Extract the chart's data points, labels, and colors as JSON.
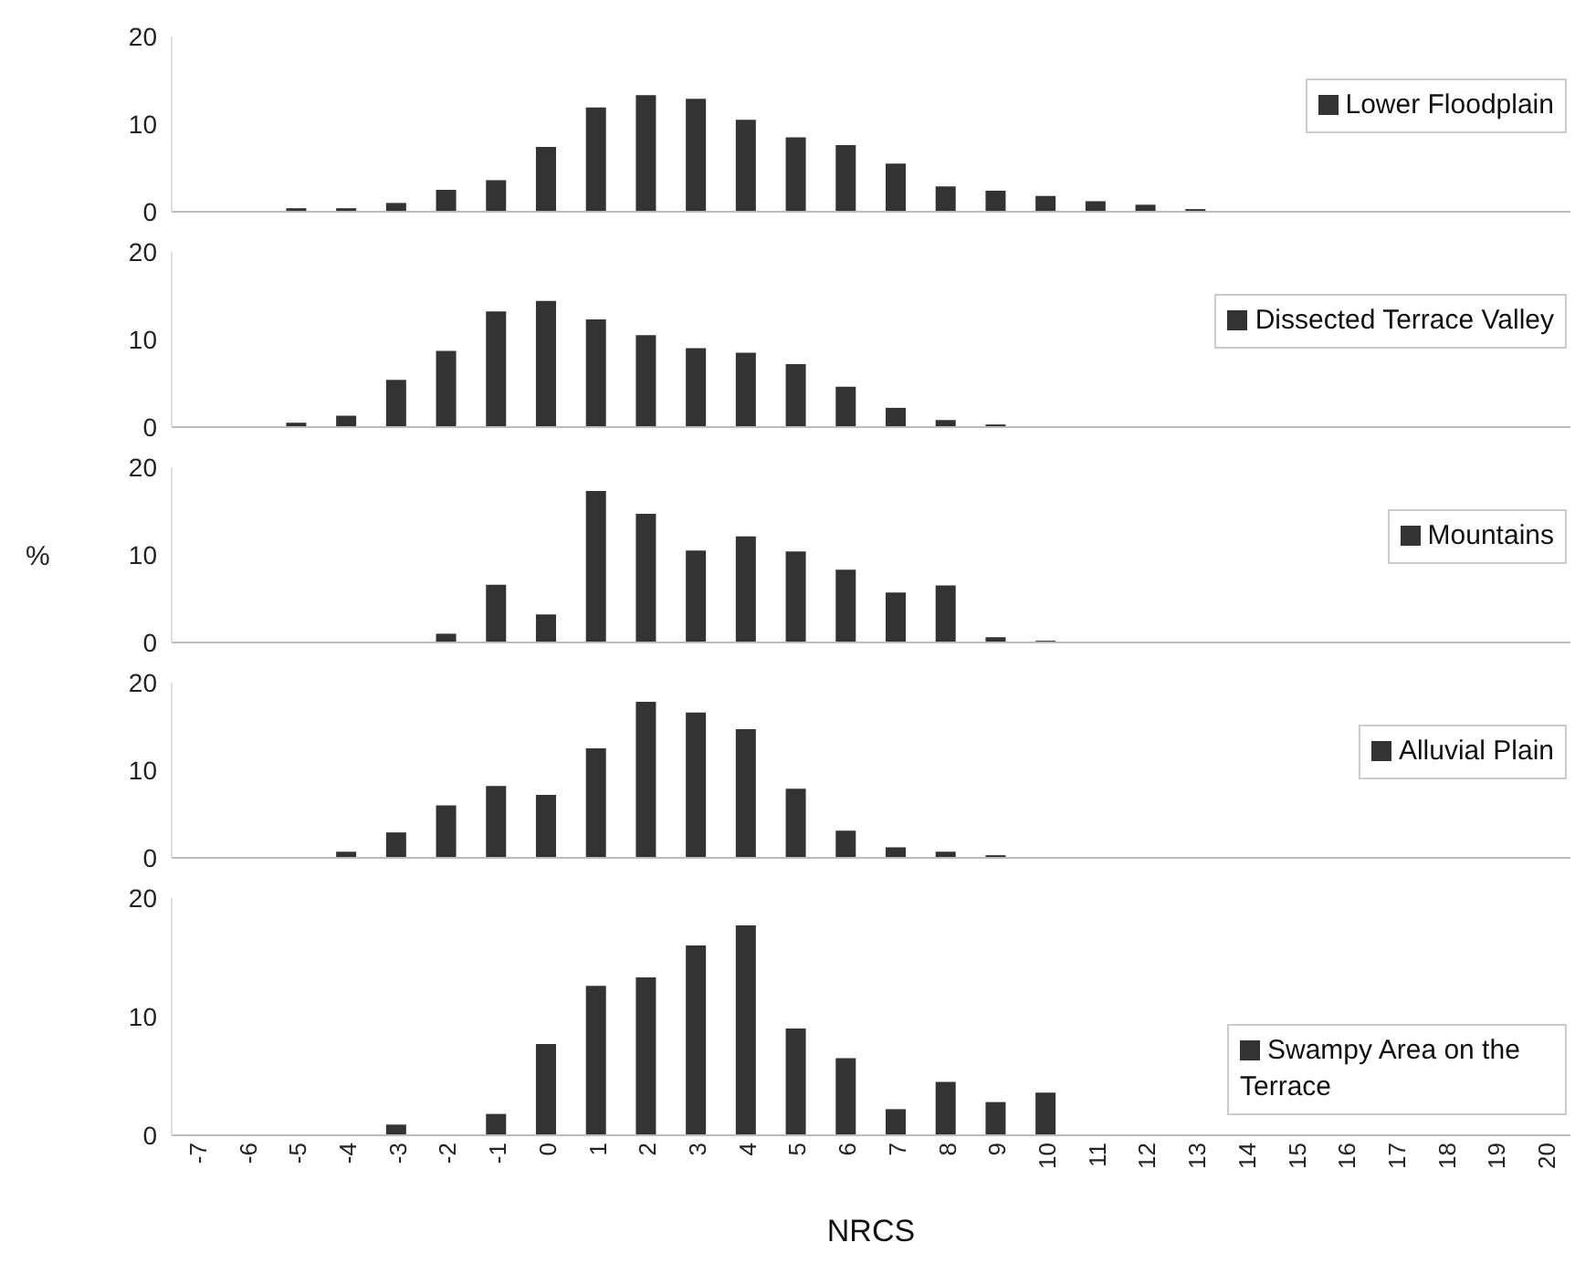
{
  "chart_data": [
    {
      "type": "bar",
      "categories": [
        "-7",
        "-6",
        "-5",
        "-4",
        "-3",
        "-2",
        "-1",
        "0",
        "1",
        "2",
        "3",
        "4",
        "5",
        "6",
        "7",
        "8",
        "9",
        "10",
        "11",
        "12",
        "13",
        "14",
        "15",
        "16",
        "17",
        "18",
        "19",
        "20"
      ],
      "ylim": [
        0,
        20
      ],
      "yticks": [
        0,
        10,
        20
      ],
      "tick_labels": "y",
      "legend": "right",
      "series": [
        {
          "name": "Lower Floodplain",
          "color": "#333333",
          "values": [
            0,
            0,
            0.4,
            0.4,
            1,
            2.5,
            3.6,
            7.4,
            11.9,
            13.3,
            12.9,
            10.5,
            8.5,
            7.6,
            5.5,
            2.9,
            2.4,
            1.8,
            1.2,
            0.8,
            0.3,
            0,
            0,
            0,
            0,
            0,
            0,
            0
          ]
        }
      ]
    },
    {
      "type": "bar",
      "categories": [
        "-7",
        "-6",
        "-5",
        "-4",
        "-3",
        "-2",
        "-1",
        "0",
        "1",
        "2",
        "3",
        "4",
        "5",
        "6",
        "7",
        "8",
        "9",
        "10",
        "11",
        "12",
        "13",
        "14",
        "15",
        "16",
        "17",
        "18",
        "19",
        "20"
      ],
      "ylim": [
        0,
        20
      ],
      "yticks": [
        0,
        10,
        20
      ],
      "tick_labels": "y",
      "legend": "right",
      "series": [
        {
          "name": "Dissected Terrace Valley",
          "color": "#333333",
          "values": [
            0,
            0,
            0.5,
            1.3,
            5.4,
            8.7,
            13.2,
            14.4,
            12.3,
            10.5,
            9,
            8.5,
            7.2,
            4.6,
            2.2,
            0.8,
            0.3,
            0,
            0,
            0,
            0,
            0,
            0,
            0,
            0,
            0,
            0,
            0
          ]
        }
      ]
    },
    {
      "type": "bar",
      "categories": [
        "-7",
        "-6",
        "-5",
        "-4",
        "-3",
        "-2",
        "-1",
        "0",
        "1",
        "2",
        "3",
        "4",
        "5",
        "6",
        "7",
        "8",
        "9",
        "10",
        "11",
        "12",
        "13",
        "14",
        "15",
        "16",
        "17",
        "18",
        "19",
        "20"
      ],
      "ylabel": "%",
      "ylim": [
        0,
        20
      ],
      "yticks": [
        0,
        10,
        20
      ],
      "tick_labels": "y",
      "legend": "right",
      "series": [
        {
          "name": "Mountains",
          "color": "#333333",
          "values": [
            0,
            0,
            0,
            0,
            0,
            1,
            6.6,
            3.2,
            17.3,
            14.7,
            10.5,
            12.1,
            10.4,
            8.3,
            5.7,
            6.5,
            0.6,
            0.2,
            0,
            0,
            0,
            0,
            0,
            0,
            0,
            0,
            0,
            0
          ]
        }
      ]
    },
    {
      "type": "bar",
      "categories": [
        "-7",
        "-6",
        "-5",
        "-4",
        "-3",
        "-2",
        "-1",
        "0",
        "1",
        "2",
        "3",
        "4",
        "5",
        "6",
        "7",
        "8",
        "9",
        "10",
        "11",
        "12",
        "13",
        "14",
        "15",
        "16",
        "17",
        "18",
        "19",
        "20"
      ],
      "ylim": [
        0,
        20
      ],
      "yticks": [
        0,
        10,
        20
      ],
      "tick_labels": "y",
      "legend": "right",
      "series": [
        {
          "name": "Alluvial Plain",
          "color": "#333333",
          "values": [
            0,
            0,
            0,
            0.7,
            2.9,
            6,
            8.2,
            7.2,
            12.5,
            17.8,
            16.6,
            14.7,
            7.9,
            3.1,
            1.2,
            0.7,
            0.3,
            0,
            0,
            0,
            0,
            0,
            0,
            0,
            0,
            0,
            0,
            0
          ]
        }
      ]
    },
    {
      "type": "bar",
      "categories": [
        "-7",
        "-6",
        "-5",
        "-4",
        "-3",
        "-2",
        "-1",
        "0",
        "1",
        "2",
        "3",
        "4",
        "5",
        "6",
        "7",
        "8",
        "9",
        "10",
        "11",
        "12",
        "13",
        "14",
        "15",
        "16",
        "17",
        "18",
        "19",
        "20"
      ],
      "xlabel": "NRCS",
      "ylim": [
        0,
        20
      ],
      "yticks": [
        0,
        10,
        20
      ],
      "legend": "right",
      "series": [
        {
          "name": "Swampy Area on the Terrace",
          "color": "#333333",
          "values": [
            0,
            0,
            0,
            0,
            0.9,
            0,
            1.8,
            7.7,
            12.6,
            13.3,
            16,
            17.7,
            9,
            6.5,
            2.2,
            4.5,
            2.8,
            3.6,
            0,
            0,
            0,
            0,
            0,
            0,
            0,
            0,
            0,
            0
          ]
        }
      ]
    }
  ]
}
